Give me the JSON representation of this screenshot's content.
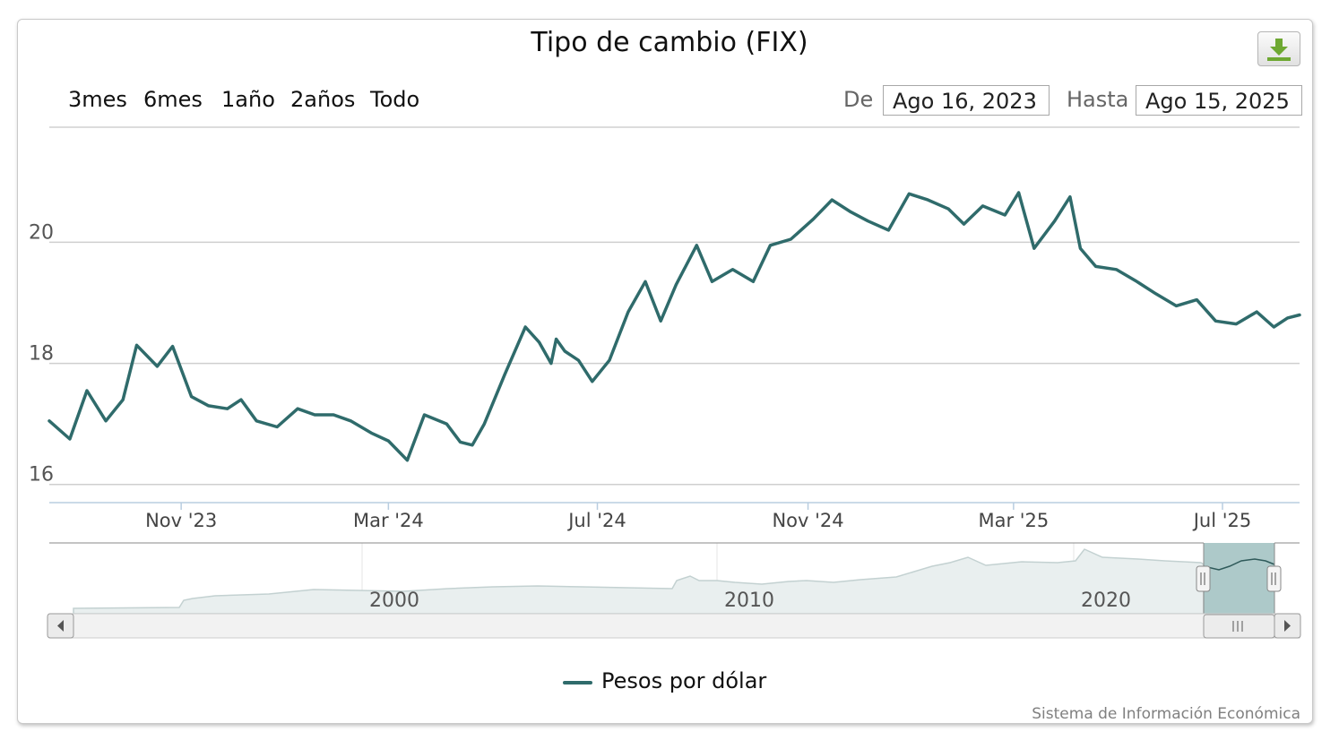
{
  "title": "Tipo de cambio (FIX)",
  "range_selector": {
    "buttons": [
      "3mes",
      "6mes",
      "1año",
      "2años",
      "Todo"
    ],
    "from_label": "De",
    "from_value": "Ago 16, 2023",
    "to_label": "Hasta",
    "to_value": "Ago 15, 2025"
  },
  "navigator": {
    "labels": [
      "2000",
      "2010",
      "2020"
    ]
  },
  "legend": {
    "series_name": "Pesos por dólar",
    "color": "#2f6b6b"
  },
  "credits": "Sistema de Información Económica",
  "icons": {
    "export": "download-icon",
    "scroll_left": "arrow-left-icon",
    "scroll_right": "arrow-right-icon"
  },
  "chart_data": {
    "type": "line",
    "title": "Tipo de cambio (FIX)",
    "xlabel": "",
    "ylabel": "",
    "x_range": [
      "2023-08-16",
      "2025-08-15"
    ],
    "ylim": [
      15.7,
      21.9
    ],
    "yticks": [
      16,
      18,
      20
    ],
    "xtick_labels": [
      "Nov '23",
      "Mar '24",
      "Jul '24",
      "Nov '24",
      "Mar '25",
      "Jul '25"
    ],
    "grid": true,
    "legend": "bottom-center",
    "series": [
      {
        "name": "Pesos por dólar",
        "color": "#2f6b6b",
        "x": [
          "2023-08-16",
          "2023-08-28",
          "2023-09-07",
          "2023-09-18",
          "2023-09-28",
          "2023-10-06",
          "2023-10-18",
          "2023-10-27",
          "2023-11-07",
          "2023-11-17",
          "2023-11-28",
          "2023-12-06",
          "2023-12-15",
          "2023-12-27",
          "2024-01-08",
          "2024-01-18",
          "2024-01-29",
          "2024-02-08",
          "2024-02-20",
          "2024-03-01",
          "2024-03-12",
          "2024-03-22",
          "2024-04-04",
          "2024-04-12",
          "2024-04-19",
          "2024-04-26",
          "2024-05-08",
          "2024-05-20",
          "2024-05-28",
          "2024-06-04",
          "2024-06-07",
          "2024-06-12",
          "2024-06-20",
          "2024-06-28",
          "2024-07-08",
          "2024-07-19",
          "2024-07-29",
          "2024-08-07",
          "2024-08-16",
          "2024-08-28",
          "2024-09-06",
          "2024-09-18",
          "2024-09-30",
          "2024-10-10",
          "2024-10-22",
          "2024-11-04",
          "2024-11-15",
          "2024-11-26",
          "2024-12-06",
          "2024-12-18",
          "2024-12-30",
          "2025-01-10",
          "2025-01-22",
          "2025-01-31",
          "2025-02-11",
          "2025-02-24",
          "2025-03-04",
          "2025-03-13",
          "2025-03-25",
          "2025-04-03",
          "2025-04-09",
          "2025-04-18",
          "2025-04-30",
          "2025-05-12",
          "2025-05-23",
          "2025-06-04",
          "2025-06-16",
          "2025-06-27",
          "2025-07-09",
          "2025-07-21",
          "2025-07-31",
          "2025-08-08",
          "2025-08-15"
        ],
        "y": [
          17.05,
          16.75,
          17.55,
          17.05,
          17.4,
          18.3,
          17.95,
          18.28,
          17.45,
          17.3,
          17.25,
          17.4,
          17.05,
          16.95,
          17.25,
          17.15,
          17.15,
          17.05,
          16.85,
          16.72,
          16.4,
          17.15,
          17.0,
          16.7,
          16.65,
          17.0,
          17.82,
          18.6,
          18.35,
          18.0,
          18.4,
          18.2,
          18.05,
          17.7,
          18.05,
          18.85,
          19.35,
          18.7,
          19.3,
          19.95,
          19.35,
          19.55,
          19.35,
          19.95,
          20.05,
          20.38,
          20.7,
          20.5,
          20.35,
          20.2,
          20.8,
          20.7,
          20.55,
          20.3,
          20.6,
          20.45,
          20.82,
          19.9,
          20.35,
          20.75,
          19.9,
          19.6,
          19.55,
          19.35,
          19.15,
          18.95,
          19.05,
          18.7,
          18.65,
          18.85,
          18.6,
          18.75,
          18.8
        ]
      }
    ]
  }
}
